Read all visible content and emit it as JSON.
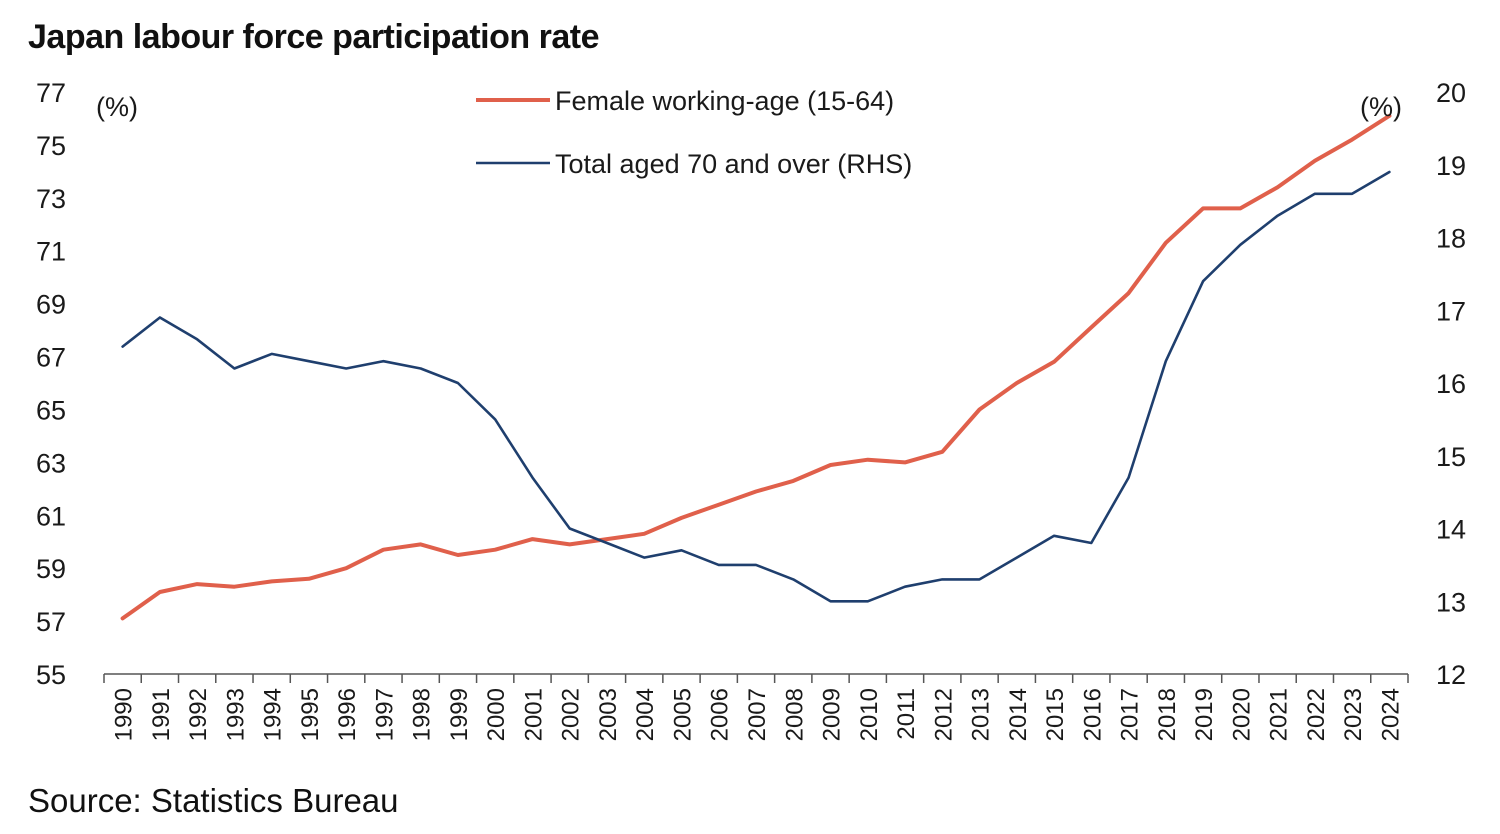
{
  "chart_data": {
    "type": "line",
    "title": "Japan labour force participation rate",
    "source": "Source: Statistics Bureau",
    "x": [
      "1990",
      "1991",
      "1992",
      "1993",
      "1994",
      "1995",
      "1996",
      "1997",
      "1998",
      "1999",
      "2000",
      "2001",
      "2002",
      "2003",
      "2004",
      "2005",
      "2006",
      "2007",
      "2008",
      "2009",
      "2010",
      "2011",
      "2012",
      "2013",
      "2014",
      "2015",
      "2016",
      "2017",
      "2018",
      "2019",
      "2020",
      "2021",
      "2022",
      "2023",
      "2024"
    ],
    "y_left": {
      "unit_label": "(%)",
      "lim": [
        55,
        77
      ],
      "ticks": [
        55,
        57,
        59,
        61,
        63,
        65,
        67,
        69,
        71,
        73,
        75,
        77
      ]
    },
    "y_right": {
      "unit_label": "(%)",
      "lim": [
        12,
        20
      ],
      "ticks": [
        12,
        13,
        14,
        15,
        16,
        17,
        18,
        19,
        20
      ]
    },
    "legend_position": "top-center",
    "grid": false,
    "series": [
      {
        "name": "Female working-age (15-64)",
        "axis": "left",
        "color": "#e0604b",
        "values": [
          57.1,
          58.1,
          58.4,
          58.3,
          58.5,
          58.6,
          59.0,
          59.7,
          59.9,
          59.5,
          59.7,
          60.1,
          59.9,
          60.1,
          60.3,
          60.9,
          61.4,
          61.9,
          62.3,
          62.9,
          63.1,
          63.0,
          63.4,
          65.0,
          66.0,
          66.8,
          68.1,
          69.4,
          71.3,
          72.6,
          72.6,
          73.4,
          74.4,
          75.2,
          76.1
        ]
      },
      {
        "name": "Total aged 70 and over (RHS)",
        "axis": "right",
        "color": "#1f3f6e",
        "values": [
          16.5,
          16.9,
          16.6,
          16.2,
          16.4,
          16.3,
          16.2,
          16.3,
          16.2,
          16.0,
          15.5,
          14.7,
          14.0,
          13.8,
          13.6,
          13.7,
          13.5,
          13.5,
          13.3,
          13.0,
          13.0,
          13.2,
          13.3,
          13.3,
          13.6,
          13.9,
          13.8,
          14.7,
          16.3,
          17.4,
          17.9,
          18.3,
          18.6,
          18.6,
          18.9
        ]
      }
    ]
  }
}
